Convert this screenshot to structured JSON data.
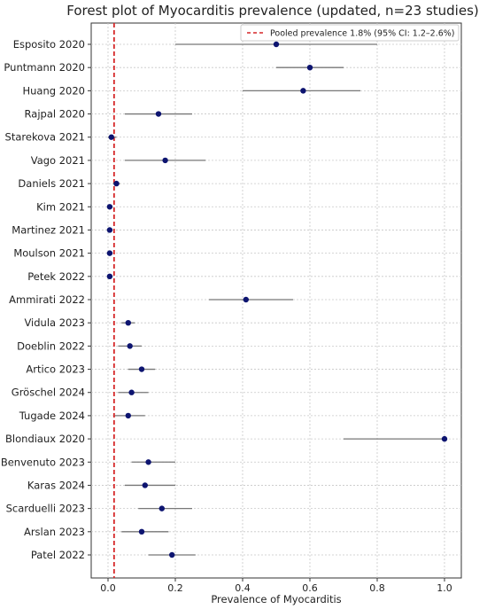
{
  "chart_data": {
    "type": "forest",
    "title": "Forest plot of Myocarditis prevalence (updated, n=23 studies)",
    "xlabel": "Prevalence of Myocarditis",
    "ylabel": "",
    "xlim": [
      -0.05,
      1.05
    ],
    "xticks": [
      0.0,
      0.2,
      0.4,
      0.6,
      0.8,
      1.0
    ],
    "xtick_labels": [
      "0.0",
      "0.2",
      "0.4",
      "0.6",
      "0.8",
      "1.0"
    ],
    "grid": true,
    "legend": {
      "placement": "top-right",
      "entries": [
        {
          "label": "Pooled prevalence 1.8% (95% CI: 1.2–2.6%)",
          "style": "dashed",
          "color": "#d62728"
        }
      ]
    },
    "pooled": {
      "estimate": 0.018,
      "ci_low": 0.012,
      "ci_high": 0.026
    },
    "studies": [
      {
        "name": "Esposito 2020",
        "estimate": 0.5,
        "ci_low": 0.2,
        "ci_high": 0.8
      },
      {
        "name": "Puntmann 2020",
        "estimate": 0.6,
        "ci_low": 0.5,
        "ci_high": 0.7
      },
      {
        "name": "Huang 2020",
        "estimate": 0.58,
        "ci_low": 0.4,
        "ci_high": 0.75
      },
      {
        "name": "Rajpal 2020",
        "estimate": 0.15,
        "ci_low": 0.05,
        "ci_high": 0.25
      },
      {
        "name": "Starekova 2021",
        "estimate": 0.01,
        "ci_low": 0.0,
        "ci_high": 0.025
      },
      {
        "name": "Vago 2021",
        "estimate": 0.17,
        "ci_low": 0.05,
        "ci_high": 0.29
      },
      {
        "name": "Daniels 2021",
        "estimate": 0.025,
        "ci_low": 0.015,
        "ci_high": 0.035
      },
      {
        "name": "Kim 2021",
        "estimate": 0.005,
        "ci_low": 0.0,
        "ci_high": 0.012
      },
      {
        "name": "Martinez 2021",
        "estimate": 0.005,
        "ci_low": 0.0,
        "ci_high": 0.012
      },
      {
        "name": "Moulson 2021",
        "estimate": 0.005,
        "ci_low": 0.0,
        "ci_high": 0.012
      },
      {
        "name": "Petek 2022",
        "estimate": 0.005,
        "ci_low": 0.0,
        "ci_high": 0.012
      },
      {
        "name": "Ammirati 2022",
        "estimate": 0.41,
        "ci_low": 0.3,
        "ci_high": 0.55
      },
      {
        "name": "Vidula 2023",
        "estimate": 0.06,
        "ci_low": 0.04,
        "ci_high": 0.08
      },
      {
        "name": "Doeblin 2022",
        "estimate": 0.065,
        "ci_low": 0.03,
        "ci_high": 0.1
      },
      {
        "name": "Artico 2023",
        "estimate": 0.1,
        "ci_low": 0.06,
        "ci_high": 0.14
      },
      {
        "name": "Gröschel 2024",
        "estimate": 0.07,
        "ci_low": 0.03,
        "ci_high": 0.12
      },
      {
        "name": "Tugade 2024",
        "estimate": 0.06,
        "ci_low": 0.02,
        "ci_high": 0.11
      },
      {
        "name": "Blondiaux 2020",
        "estimate": 1.0,
        "ci_low": 0.7,
        "ci_high": 1.0
      },
      {
        "name": "Benvenuto 2023",
        "estimate": 0.12,
        "ci_low": 0.07,
        "ci_high": 0.2
      },
      {
        "name": "Karas 2024",
        "estimate": 0.11,
        "ci_low": 0.05,
        "ci_high": 0.2
      },
      {
        "name": "Scarduelli 2023",
        "estimate": 0.16,
        "ci_low": 0.09,
        "ci_high": 0.25
      },
      {
        "name": "Arslan 2023",
        "estimate": 0.1,
        "ci_low": 0.04,
        "ci_high": 0.18
      },
      {
        "name": "Patel 2022",
        "estimate": 0.19,
        "ci_low": 0.12,
        "ci_high": 0.26
      }
    ],
    "colors": {
      "point": "#0d1470",
      "ci_line": "#777777",
      "pooled_line": "#d62728",
      "grid": "#c8c8c8",
      "axes": "#333333"
    }
  }
}
